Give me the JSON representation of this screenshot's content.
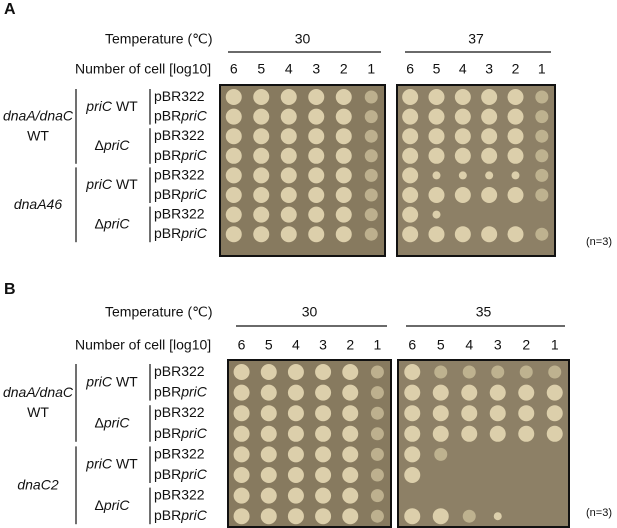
{
  "panels": [
    {
      "label": "A",
      "temperature_label": "Temperature (℃)",
      "cells_label": "Number of cell [log10]",
      "temperatures": [
        "30",
        "37"
      ],
      "dilutions": [
        "6",
        "5",
        "4",
        "3",
        "2",
        "1"
      ],
      "hosts": [
        {
          "gene": "dnaA/dnaC",
          "suffix": "WT",
          "pric": [
            {
              "gene": "priC",
              "suffix": "WT"
            },
            {
              "delta": "Δ",
              "gene": "priC"
            }
          ]
        },
        {
          "gene": "dnaA46",
          "pric": [
            {
              "gene": "priC",
              "suffix": "WT"
            },
            {
              "delta": "Δ",
              "gene": "priC"
            }
          ]
        }
      ],
      "plasmids": [
        {
          "text": "pBR322"
        },
        {
          "prefix": "pBR",
          "gene": "priC"
        }
      ],
      "note": "(n=3)"
    },
    {
      "label": "B",
      "temperature_label": "Temperature (℃)",
      "cells_label": "Number of cell [log10]",
      "temperatures": [
        "30",
        "35"
      ],
      "dilutions": [
        "6",
        "5",
        "4",
        "3",
        "2",
        "1"
      ],
      "hosts": [
        {
          "gene": "dnaA/dnaC",
          "suffix": "WT",
          "pric": [
            {
              "gene": "priC",
              "suffix": "WT"
            },
            {
              "delta": "Δ",
              "gene": "priC"
            }
          ]
        },
        {
          "gene": "dnaC2",
          "pric": [
            {
              "gene": "priC",
              "suffix": "WT"
            },
            {
              "delta": "Δ",
              "gene": "priC"
            }
          ]
        }
      ],
      "plasmids": [
        {
          "text": "pBR322"
        },
        {
          "prefix": "pBR",
          "gene": "priC"
        }
      ],
      "note": "(n=3)"
    }
  ]
}
